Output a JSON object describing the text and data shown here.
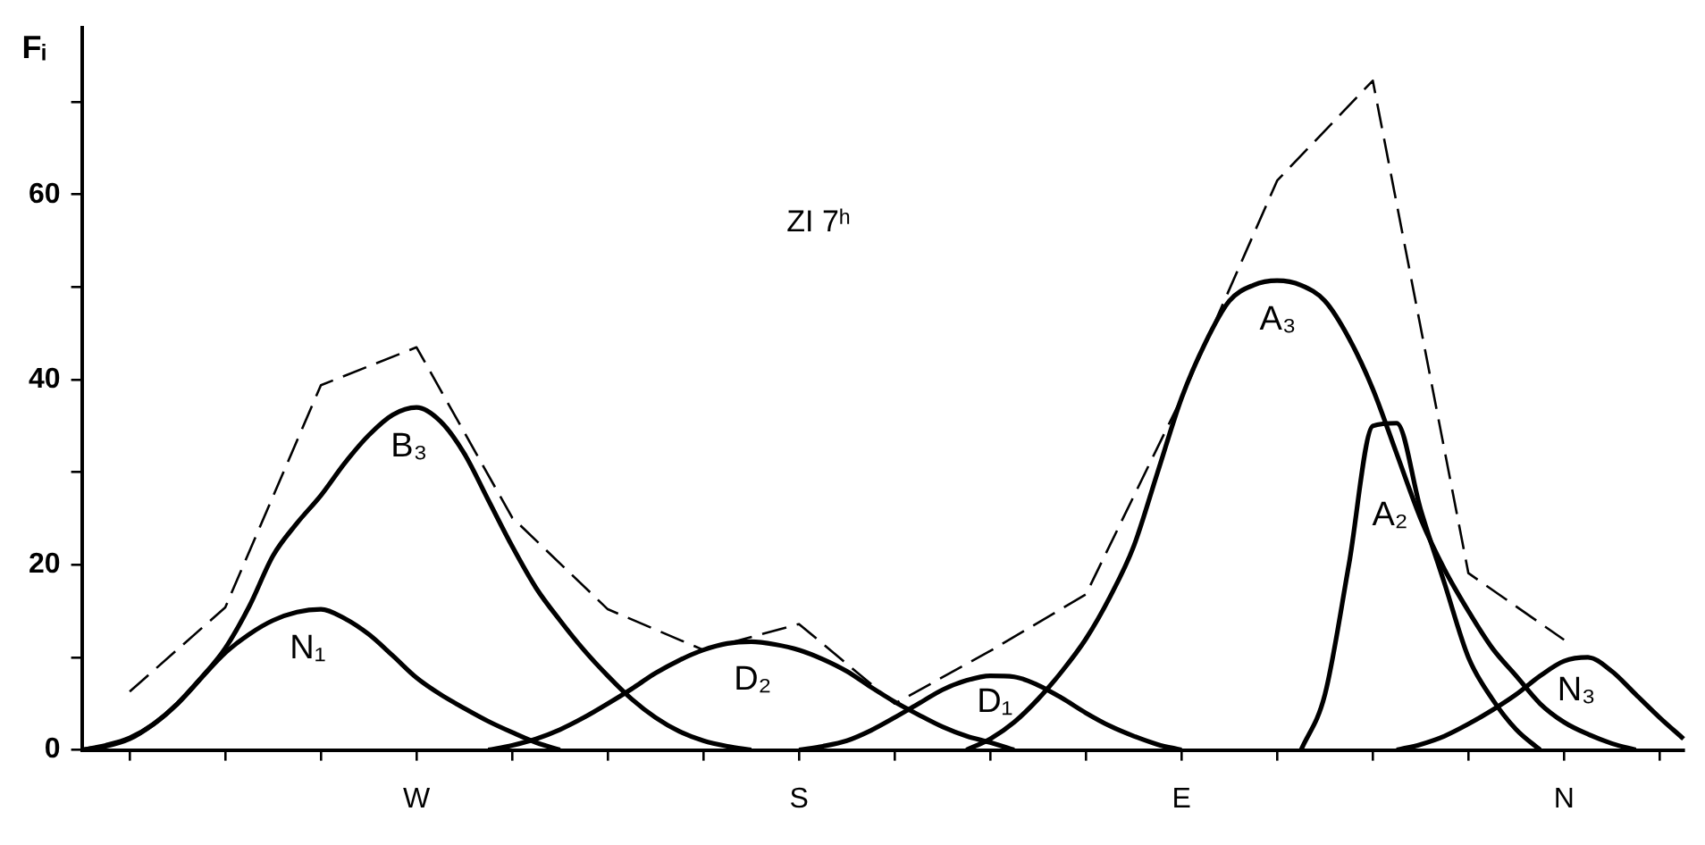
{
  "chart_data": {
    "type": "line",
    "title": "ZI 7ʰ",
    "ylabel": "Fᵢ",
    "categories": [
      null,
      null,
      null,
      null,
      null,
      null,
      null,
      null,
      null,
      null,
      null,
      null,
      null,
      null,
      "W",
      null,
      null,
      null,
      null,
      null,
      null,
      null,
      null,
      null,
      null,
      null,
      null,
      null,
      null,
      null,
      "S",
      null,
      null,
      null,
      null,
      null,
      null,
      null,
      null,
      null,
      null,
      null,
      null,
      null,
      null,
      null,
      "E",
      null,
      null,
      null,
      null,
      null,
      null,
      null,
      null,
      null,
      null,
      null,
      null,
      null,
      null,
      null,
      "N",
      null,
      null,
      null,
      null,
      null
    ],
    "ylim": [
      0,
      78
    ],
    "yticks": [
      0,
      {
        "value": 10,
        "label": null
      },
      20,
      {
        "value": 30,
        "label": null
      },
      40,
      {
        "value": 50,
        "label": null
      },
      60,
      {
        "value": 70,
        "label": null
      }
    ],
    "grid": false,
    "legend": false,
    "marker": "none",
    "series": [
      {
        "color": "#000000",
        "line_style": "dashed",
        "values": [
          null,
          null,
          6.3,
          null,
          null,
          null,
          15.4,
          null,
          null,
          null,
          39.4,
          null,
          null,
          null,
          43.5,
          null,
          null,
          null,
          25.1,
          null,
          null,
          null,
          15.2,
          null,
          null,
          null,
          10.8,
          null,
          null,
          null,
          13.6,
          null,
          null,
          null,
          5,
          null,
          null,
          null,
          10.7,
          null,
          null,
          null,
          16.8,
          null,
          null,
          null,
          38,
          null,
          null,
          null,
          61.5,
          null,
          null,
          null,
          72.3,
          null,
          null,
          null,
          19.1,
          null,
          null,
          null,
          11.9,
          null,
          null,
          null,
          null,
          null
        ]
      },
      {
        "name": "N₁",
        "color": "#000000",
        "line_style": "solid",
        "values": [
          0,
          0.4,
          1.2,
          2.8,
          5,
          7.8,
          10.5,
          12.5,
          14,
          14.9,
          15.2,
          14.2,
          12.5,
          10.2,
          7.8,
          6,
          4.5,
          3.1,
          1.9,
          0.8,
          0,
          null,
          null,
          null,
          null,
          null,
          null,
          null,
          null,
          null,
          null,
          null,
          null,
          null,
          null,
          null,
          null,
          null,
          null,
          null,
          null,
          null,
          null,
          null,
          null,
          null,
          null,
          null,
          null,
          null,
          null,
          null,
          null,
          null,
          null,
          null,
          null,
          null,
          null,
          null,
          null,
          null,
          null,
          null,
          null,
          null,
          null,
          null
        ]
      },
      {
        "name": "B₃",
        "color": "#000000",
        "line_style": "solid",
        "values": [
          0,
          0.5,
          1.3,
          2.8,
          5,
          7.8,
          11,
          15.5,
          21,
          24.5,
          27.5,
          31,
          34,
          36.2,
          37,
          35.5,
          32,
          27,
          22,
          17.5,
          14,
          10.8,
          8,
          5.5,
          3.5,
          2,
          1,
          0.4,
          0,
          null,
          null,
          null,
          null,
          null,
          null,
          null,
          null,
          null,
          null,
          null,
          null,
          null,
          null,
          null,
          null,
          null,
          null,
          null,
          null,
          null,
          null,
          null,
          null,
          null,
          null,
          null,
          null,
          null,
          null,
          null,
          null,
          null,
          null,
          null,
          null,
          null,
          null,
          null
        ]
      },
      {
        "name": "D₂",
        "color": "#000000",
        "line_style": "solid",
        "values": [
          null,
          null,
          null,
          null,
          null,
          null,
          null,
          null,
          null,
          null,
          null,
          null,
          null,
          null,
          null,
          null,
          null,
          0,
          0.5,
          1.2,
          2.2,
          3.5,
          5,
          6.6,
          8.3,
          9.7,
          10.8,
          11.5,
          11.7,
          11.4,
          10.8,
          9.8,
          8.5,
          6.8,
          5.2,
          3.8,
          2.5,
          1.5,
          0.8,
          0,
          null,
          null,
          null,
          null,
          null,
          null,
          null,
          null,
          null,
          null,
          null,
          null,
          null,
          null,
          null,
          null,
          null,
          null,
          null,
          null,
          null,
          null,
          null,
          null,
          null,
          null,
          null,
          null
        ]
      },
      {
        "name": "D₁",
        "color": "#000000",
        "line_style": "solid",
        "values": [
          null,
          null,
          null,
          null,
          null,
          null,
          null,
          null,
          null,
          null,
          null,
          null,
          null,
          null,
          null,
          null,
          null,
          null,
          null,
          null,
          null,
          null,
          null,
          null,
          null,
          null,
          null,
          null,
          null,
          null,
          0,
          0.4,
          1,
          2.1,
          3.5,
          5,
          6.5,
          7.5,
          8,
          7.9,
          7,
          5.6,
          4,
          2.6,
          1.5,
          0.6,
          0,
          null,
          null,
          null,
          null,
          null,
          null,
          null,
          null,
          null,
          null,
          null,
          null,
          null,
          null,
          null,
          null,
          null,
          null,
          null,
          null,
          null
        ]
      },
      {
        "name": "A₃",
        "color": "#000000",
        "line_style": "solid",
        "values": [
          null,
          null,
          null,
          null,
          null,
          null,
          null,
          null,
          null,
          null,
          null,
          null,
          null,
          null,
          null,
          null,
          null,
          null,
          null,
          null,
          null,
          null,
          null,
          null,
          null,
          null,
          null,
          null,
          null,
          null,
          null,
          null,
          null,
          null,
          null,
          null,
          null,
          0,
          1.2,
          3,
          5.5,
          8.5,
          12,
          16.5,
          22,
          30,
          38,
          44,
          48.5,
          50.2,
          50.7,
          50.2,
          48.5,
          44.5,
          39,
          32,
          25,
          19.5,
          15,
          11,
          8,
          5,
          3,
          1.7,
          0.7,
          0,
          null,
          null
        ]
      },
      {
        "name": "A₂",
        "color": "#000000",
        "line_style": "solid",
        "values": [
          null,
          null,
          null,
          null,
          null,
          null,
          null,
          null,
          null,
          null,
          null,
          null,
          null,
          null,
          null,
          null,
          null,
          null,
          null,
          null,
          null,
          null,
          null,
          null,
          null,
          null,
          null,
          null,
          null,
          null,
          null,
          null,
          null,
          null,
          null,
          null,
          null,
          null,
          null,
          null,
          null,
          null,
          null,
          null,
          null,
          null,
          null,
          null,
          null,
          null,
          null,
          0,
          6,
          20,
          35,
          35.3,
          26,
          18,
          10,
          5.5,
          2.2,
          0,
          null,
          null,
          null,
          null,
          null,
          null
        ]
      },
      {
        "name": "N₃",
        "color": "#000000",
        "line_style": "solid",
        "values": [
          null,
          null,
          null,
          null,
          null,
          null,
          null,
          null,
          null,
          null,
          null,
          null,
          null,
          null,
          null,
          null,
          null,
          null,
          null,
          null,
          null,
          null,
          null,
          null,
          null,
          null,
          null,
          null,
          null,
          null,
          null,
          null,
          null,
          null,
          null,
          null,
          null,
          null,
          null,
          null,
          null,
          null,
          null,
          null,
          null,
          null,
          null,
          null,
          null,
          null,
          null,
          null,
          null,
          null,
          null,
          0,
          0.6,
          1.5,
          2.8,
          4.3,
          6,
          8,
          9.6,
          10,
          8.5,
          6,
          3.5,
          1.2
        ]
      }
    ]
  }
}
